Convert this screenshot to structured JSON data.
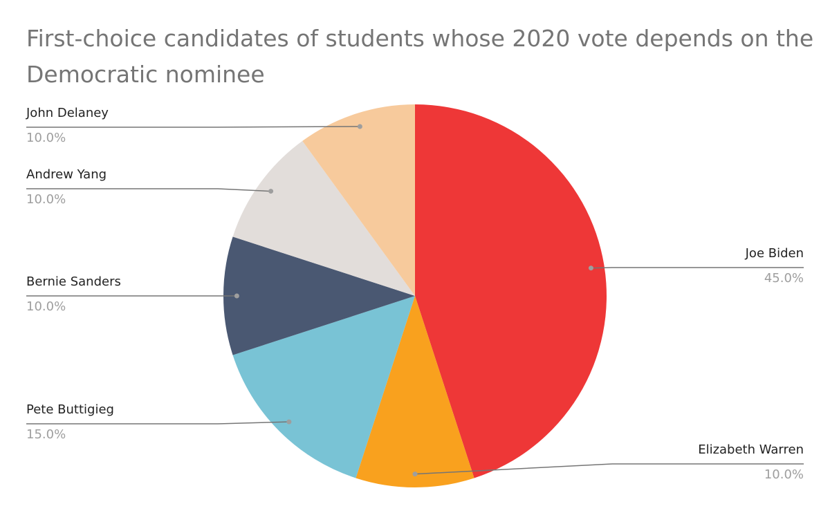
{
  "chart_data": {
    "type": "pie",
    "title": "First-choice candidates of students whose 2020 vote depends on the Democratic nominee",
    "categories": [
      "Joe Biden",
      "Elizabeth Warren",
      "Pete Buttigieg",
      "Bernie Sanders",
      "Andrew Yang",
      "John Delaney"
    ],
    "values": [
      45,
      10,
      15,
      10,
      10,
      10
    ],
    "value_labels": [
      "45.0%",
      "10.0%",
      "15.0%",
      "10.0%",
      "10.0%",
      "10.0%"
    ],
    "colors": [
      "#ee3737",
      "#f9a11e",
      "#79c3d5",
      "#4a5872",
      "#e2ddda",
      "#f7ca9c"
    ]
  }
}
